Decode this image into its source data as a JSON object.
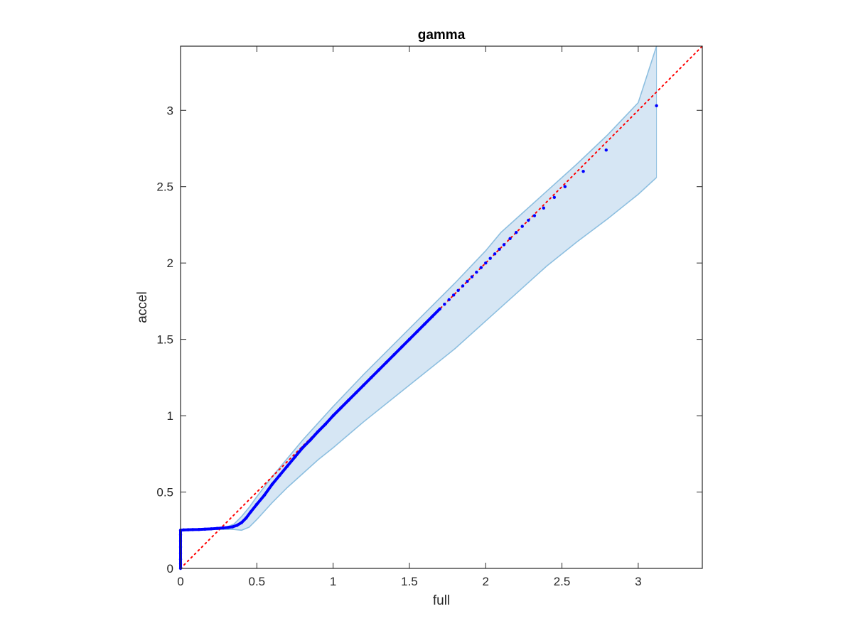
{
  "chart_data": {
    "type": "scatter",
    "title": "gamma",
    "xlabel": "full",
    "ylabel": "accel",
    "xlim": [
      0,
      3.42
    ],
    "ylim": [
      0,
      3.42
    ],
    "x_ticks": [
      0,
      0.5,
      1,
      1.5,
      2,
      2.5,
      3
    ],
    "x_tick_labels": [
      "0",
      "0.5",
      "1",
      "1.5",
      "2",
      "2.5",
      "3"
    ],
    "y_ticks": [
      0,
      0.5,
      1,
      1.5,
      2,
      2.5,
      3
    ],
    "y_tick_labels": [
      "0",
      "0.5",
      "1",
      "1.5",
      "2",
      "2.5",
      "3"
    ],
    "grid": false,
    "box": true,
    "colors": {
      "points": "#0000ff",
      "reference_line": "#ff0000",
      "band_fill": "#d6e6f4",
      "band_edge": "#8dbfe0",
      "axis": "#262626"
    },
    "series": [
      {
        "style": "scatter",
        "color": "#0000ff",
        "points": [
          [
            0.0,
            0.0
          ],
          [
            0.0,
            0.03
          ],
          [
            0.0,
            0.06
          ],
          [
            0.0,
            0.1
          ],
          [
            0.0,
            0.14
          ],
          [
            0.0,
            0.18
          ],
          [
            0.0,
            0.22
          ],
          [
            0.0,
            0.25
          ],
          [
            0.02,
            0.252
          ],
          [
            0.05,
            0.253
          ],
          [
            0.08,
            0.254
          ],
          [
            0.12,
            0.255
          ],
          [
            0.16,
            0.257
          ],
          [
            0.2,
            0.259
          ],
          [
            0.24,
            0.262
          ],
          [
            0.28,
            0.265
          ],
          [
            0.31,
            0.268
          ],
          [
            0.34,
            0.272
          ],
          [
            0.37,
            0.282
          ],
          [
            0.4,
            0.3
          ],
          [
            0.43,
            0.33
          ],
          [
            0.46,
            0.37
          ],
          [
            0.5,
            0.42
          ],
          [
            0.55,
            0.48
          ],
          [
            0.6,
            0.55
          ],
          [
            0.65,
            0.61
          ],
          [
            0.7,
            0.67
          ],
          [
            0.75,
            0.73
          ],
          [
            0.8,
            0.79
          ],
          [
            0.85,
            0.84
          ],
          [
            0.9,
            0.895
          ],
          [
            0.95,
            0.945
          ],
          [
            1.0,
            1.0
          ],
          [
            1.05,
            1.05
          ],
          [
            1.1,
            1.1
          ],
          [
            1.15,
            1.15
          ],
          [
            1.2,
            1.2
          ],
          [
            1.25,
            1.25
          ],
          [
            1.3,
            1.3
          ],
          [
            1.35,
            1.35
          ],
          [
            1.4,
            1.4
          ],
          [
            1.45,
            1.45
          ],
          [
            1.5,
            1.5
          ],
          [
            1.55,
            1.55
          ],
          [
            1.6,
            1.6
          ],
          [
            1.65,
            1.65
          ],
          [
            1.7,
            1.7
          ],
          [
            1.73,
            1.73
          ],
          [
            1.76,
            1.76
          ],
          [
            1.79,
            1.79
          ],
          [
            1.82,
            1.82
          ],
          [
            1.85,
            1.85
          ],
          [
            1.88,
            1.88
          ],
          [
            1.91,
            1.91
          ],
          [
            1.94,
            1.94
          ],
          [
            1.97,
            1.97
          ],
          [
            2.0,
            2.0
          ],
          [
            2.03,
            2.03
          ],
          [
            2.06,
            2.06
          ],
          [
            2.09,
            2.09
          ],
          [
            2.12,
            2.12
          ],
          [
            2.16,
            2.16
          ],
          [
            2.2,
            2.2
          ],
          [
            2.24,
            2.24
          ],
          [
            2.28,
            2.28
          ],
          [
            2.32,
            2.31
          ],
          [
            2.38,
            2.36
          ],
          [
            2.45,
            2.43
          ],
          [
            2.52,
            2.5
          ],
          [
            2.64,
            2.6
          ],
          [
            2.79,
            2.74
          ],
          [
            3.12,
            3.03
          ]
        ]
      },
      {
        "style": "dotted-line",
        "color": "#ff0000",
        "points": [
          [
            0,
            0
          ],
          [
            3.42,
            3.42
          ]
        ]
      },
      {
        "style": "band",
        "color": "#d6e6f4",
        "upper": [
          [
            0.0,
            0.25
          ],
          [
            0.1,
            0.255
          ],
          [
            0.2,
            0.26
          ],
          [
            0.3,
            0.27
          ],
          [
            0.35,
            0.29
          ],
          [
            0.4,
            0.34
          ],
          [
            0.45,
            0.4
          ],
          [
            0.5,
            0.47
          ],
          [
            0.6,
            0.6
          ],
          [
            0.7,
            0.72
          ],
          [
            0.8,
            0.84
          ],
          [
            0.9,
            0.95
          ],
          [
            1.0,
            1.06
          ],
          [
            1.2,
            1.27
          ],
          [
            1.4,
            1.47
          ],
          [
            1.6,
            1.67
          ],
          [
            1.8,
            1.87
          ],
          [
            2.0,
            2.08
          ],
          [
            2.1,
            2.2
          ],
          [
            2.2,
            2.29
          ],
          [
            2.4,
            2.47
          ],
          [
            2.6,
            2.65
          ],
          [
            2.8,
            2.84
          ],
          [
            3.0,
            3.05
          ],
          [
            3.12,
            3.42
          ]
        ],
        "lower": [
          [
            0.0,
            0.25
          ],
          [
            0.1,
            0.252
          ],
          [
            0.2,
            0.255
          ],
          [
            0.3,
            0.256
          ],
          [
            0.35,
            0.255
          ],
          [
            0.4,
            0.25
          ],
          [
            0.45,
            0.27
          ],
          [
            0.5,
            0.32
          ],
          [
            0.6,
            0.43
          ],
          [
            0.7,
            0.53
          ],
          [
            0.8,
            0.62
          ],
          [
            0.9,
            0.71
          ],
          [
            1.0,
            0.79
          ],
          [
            1.2,
            0.96
          ],
          [
            1.4,
            1.12
          ],
          [
            1.6,
            1.28
          ],
          [
            1.8,
            1.44
          ],
          [
            2.0,
            1.62
          ],
          [
            2.2,
            1.8
          ],
          [
            2.4,
            1.98
          ],
          [
            2.6,
            2.14
          ],
          [
            2.8,
            2.29
          ],
          [
            3.0,
            2.45
          ],
          [
            3.12,
            2.56
          ]
        ]
      }
    ]
  }
}
